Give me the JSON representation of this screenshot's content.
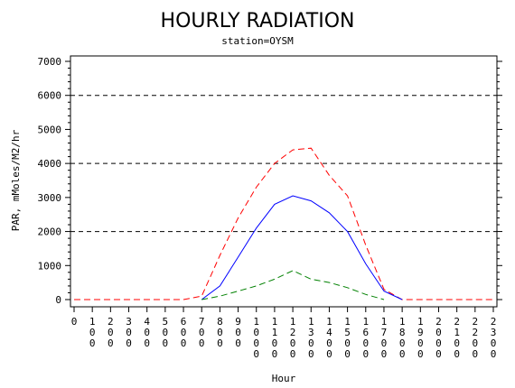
{
  "chart_data": {
    "type": "line",
    "title": "HOURLY RADIATION",
    "subtitle": "station=OYSM",
    "xlabel": "Hour",
    "ylabel": "PAR, mMoles/M2/hr",
    "ylim": [
      0,
      7000
    ],
    "xlim": [
      0,
      2300
    ],
    "y_ticks": [
      0,
      1000,
      2000,
      3000,
      4000,
      5000,
      6000,
      7000
    ],
    "x_tick_labels": [
      "0",
      "100",
      "200",
      "300",
      "400",
      "500",
      "600",
      "700",
      "800",
      "900",
      "1000",
      "1100",
      "1200",
      "1300",
      "1400",
      "1500",
      "1600",
      "1700",
      "1800",
      "1900",
      "2000",
      "2100",
      "2200",
      "2300"
    ],
    "reference_lines": [
      2000,
      4000,
      6000
    ],
    "reference_line_color": "#000000",
    "series": [
      {
        "color": "#ff0000",
        "style": "dashed",
        "x": [
          0,
          100,
          200,
          300,
          400,
          500,
          600,
          700,
          800,
          900,
          1000,
          1100,
          1200,
          1300,
          1400,
          1500,
          1600,
          1700,
          1800,
          1900,
          2000,
          2100,
          2200,
          2300
        ],
        "values": [
          0,
          0,
          0,
          0,
          0,
          0,
          0,
          100,
          1300,
          2400,
          3300,
          4000,
          4400,
          4450,
          3650,
          3050,
          1600,
          300,
          0,
          0,
          0,
          0,
          0,
          0
        ]
      },
      {
        "color": "#0000ff",
        "style": "solid",
        "x": [
          700,
          800,
          900,
          1000,
          1100,
          1200,
          1300,
          1400,
          1500,
          1600,
          1700,
          1800
        ],
        "values": [
          0,
          400,
          1250,
          2100,
          2800,
          3050,
          2900,
          2550,
          2000,
          1050,
          250,
          0
        ]
      },
      {
        "color": "#008000",
        "style": "dashed",
        "x": [
          700,
          800,
          900,
          1000,
          1100,
          1200,
          1300,
          1400,
          1500,
          1600,
          1700
        ],
        "values": [
          0,
          100,
          250,
          400,
          600,
          850,
          600,
          500,
          350,
          150,
          0
        ]
      }
    ]
  }
}
